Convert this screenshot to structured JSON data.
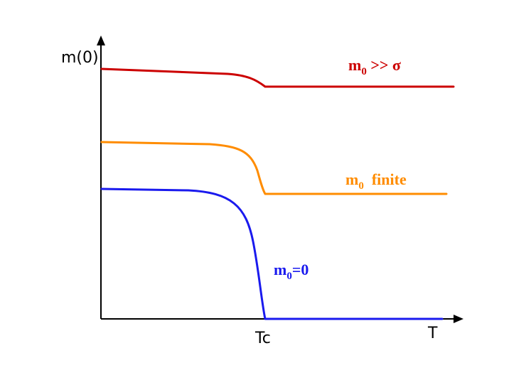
{
  "axes": {
    "y_label": "m(0)",
    "x_label": "T",
    "x_tick_label": "Tc"
  },
  "colors": {
    "large": "#cc0000",
    "finite": "#ff8c00",
    "zero": "#1a1aee",
    "axis": "#000000"
  },
  "curves": {
    "large": {
      "label_main": "m",
      "label_sub": "0",
      "label_rest": " >> σ"
    },
    "finite": {
      "label_main": "m",
      "label_sub": "0",
      "label_rest": "  finite"
    },
    "zero": {
      "label_main": "m",
      "label_sub": "0",
      "label_rest": "=0"
    }
  }
}
